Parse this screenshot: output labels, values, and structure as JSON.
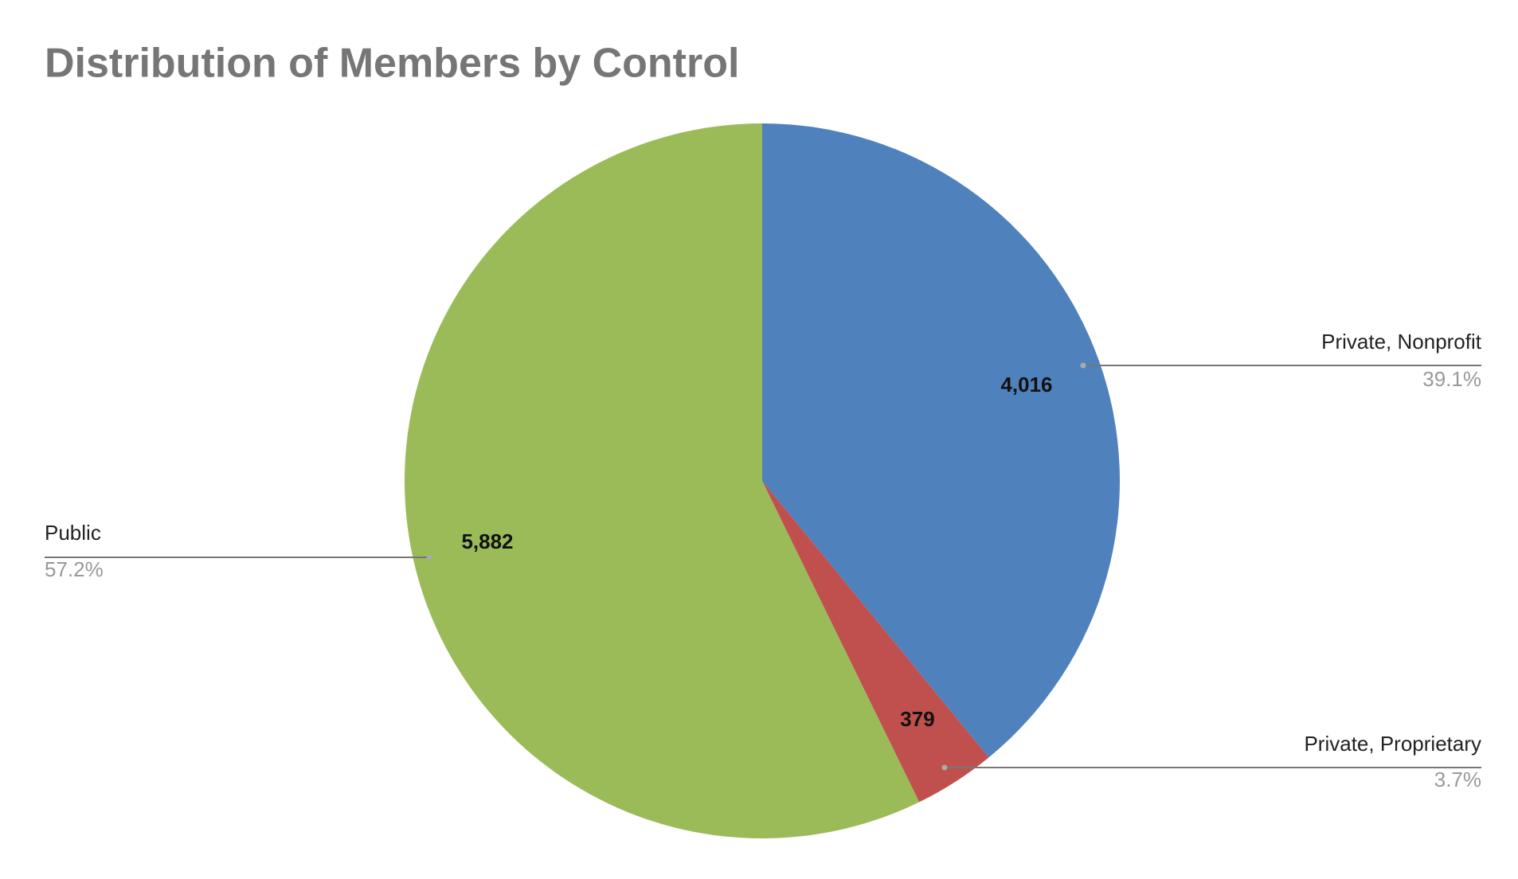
{
  "chart_data": {
    "type": "pie",
    "title": "Distribution of Members by Control",
    "categories": [
      "Private, Nonprofit",
      "Private, Proprietary",
      "Public"
    ],
    "values": [
      4016,
      379,
      5882
    ],
    "value_labels": [
      "4,016",
      "379",
      "5,882"
    ],
    "percent_labels": [
      "39.1%",
      "3.7%",
      "57.2%"
    ],
    "colors": [
      "#4f81bd",
      "#c0504d",
      "#9bbb59"
    ]
  }
}
